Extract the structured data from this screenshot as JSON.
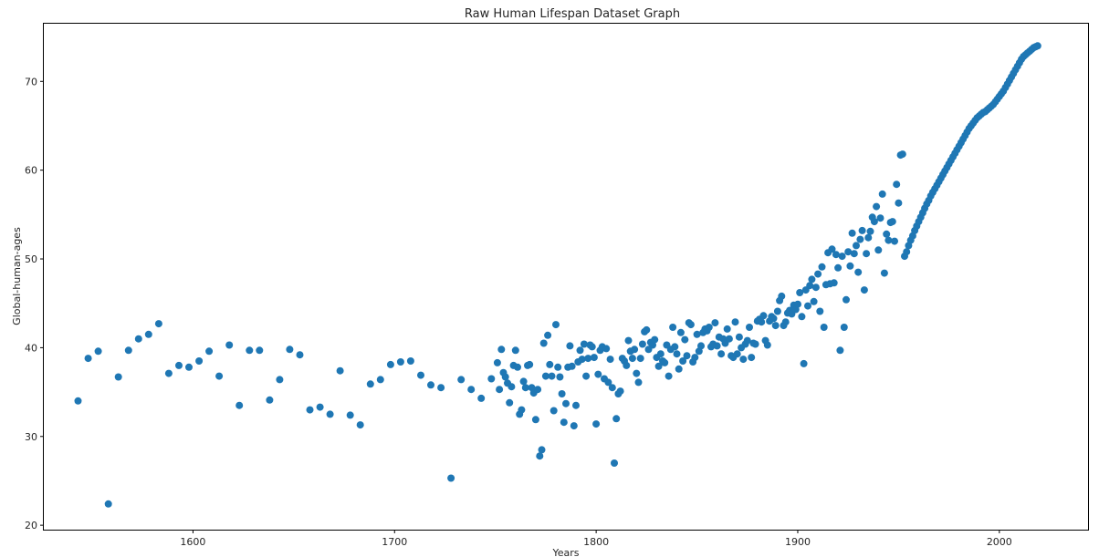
{
  "chart_data": {
    "type": "scatter",
    "title": "Raw Human Lifespan Dataset Graph",
    "xlabel": "Years",
    "ylabel": "Global-human-ages",
    "xlim": [
      1526,
      2044
    ],
    "ylim": [
      19.5,
      76.5
    ],
    "xticks": [
      1600,
      1700,
      1800,
      1900,
      2000
    ],
    "yticks": [
      20,
      30,
      40,
      50,
      60,
      70
    ],
    "grid": false,
    "legend": "none",
    "marker_color": "#1f77b4",
    "series": [
      {
        "points": [
          [
            1543,
            34.0
          ],
          [
            1548,
            38.8
          ],
          [
            1553,
            39.6
          ],
          [
            1558,
            22.4
          ],
          [
            1563,
            36.7
          ],
          [
            1568,
            39.7
          ],
          [
            1573,
            41.0
          ],
          [
            1578,
            41.5
          ],
          [
            1583,
            42.7
          ],
          [
            1588,
            37.1
          ],
          [
            1593,
            38.0
          ],
          [
            1598,
            37.8
          ],
          [
            1603,
            38.5
          ],
          [
            1608,
            39.6
          ],
          [
            1613,
            36.8
          ],
          [
            1618,
            40.3
          ],
          [
            1623,
            33.5
          ],
          [
            1628,
            39.7
          ],
          [
            1633,
            39.7
          ],
          [
            1638,
            34.1
          ],
          [
            1643,
            36.4
          ],
          [
            1648,
            39.8
          ],
          [
            1653,
            39.2
          ],
          [
            1658,
            33.0
          ],
          [
            1663,
            33.3
          ],
          [
            1668,
            32.5
          ],
          [
            1673,
            37.4
          ],
          [
            1678,
            32.4
          ],
          [
            1683,
            31.3
          ],
          [
            1688,
            35.9
          ],
          [
            1693,
            36.4
          ],
          [
            1698,
            38.1
          ],
          [
            1703,
            38.4
          ],
          [
            1708,
            38.5
          ],
          [
            1713,
            36.9
          ],
          [
            1718,
            35.8
          ],
          [
            1723,
            35.5
          ],
          [
            1728,
            25.3
          ],
          [
            1733,
            36.4
          ],
          [
            1738,
            35.3
          ],
          [
            1743,
            34.3
          ],
          [
            1748,
            36.5
          ],
          [
            1751,
            38.3
          ],
          [
            1752,
            35.3
          ],
          [
            1753,
            39.8
          ],
          [
            1754,
            37.2
          ],
          [
            1755,
            36.7
          ],
          [
            1756,
            36.0
          ],
          [
            1757,
            33.8
          ],
          [
            1758,
            35.6
          ],
          [
            1759,
            38.0
          ],
          [
            1760,
            39.7
          ],
          [
            1761,
            37.8
          ],
          [
            1762,
            32.5
          ],
          [
            1763,
            33.0
          ],
          [
            1764,
            36.2
          ],
          [
            1765,
            35.5
          ],
          [
            1766,
            38.0
          ],
          [
            1767,
            38.1
          ],
          [
            1768,
            35.5
          ],
          [
            1769,
            34.9
          ],
          [
            1770,
            31.9
          ],
          [
            1771,
            35.3
          ],
          [
            1772,
            27.8
          ],
          [
            1773,
            28.5
          ],
          [
            1774,
            40.5
          ],
          [
            1775,
            36.8
          ],
          [
            1776,
            41.4
          ],
          [
            1777,
            38.1
          ],
          [
            1778,
            36.8
          ],
          [
            1779,
            32.9
          ],
          [
            1780,
            42.6
          ],
          [
            1781,
            37.8
          ],
          [
            1782,
            36.7
          ],
          [
            1783,
            34.8
          ],
          [
            1784,
            31.6
          ],
          [
            1785,
            33.7
          ],
          [
            1786,
            37.8
          ],
          [
            1787,
            40.2
          ],
          [
            1788,
            37.9
          ],
          [
            1789,
            31.2
          ],
          [
            1790,
            33.5
          ],
          [
            1791,
            38.4
          ],
          [
            1792,
            39.7
          ],
          [
            1793,
            38.7
          ],
          [
            1794,
            40.4
          ],
          [
            1795,
            36.8
          ],
          [
            1796,
            38.8
          ],
          [
            1797,
            40.3
          ],
          [
            1798,
            40.1
          ],
          [
            1799,
            38.9
          ],
          [
            1800,
            31.4
          ],
          [
            1801,
            37.0
          ],
          [
            1802,
            39.7
          ],
          [
            1803,
            40.1
          ],
          [
            1804,
            36.5
          ],
          [
            1805,
            39.9
          ],
          [
            1806,
            36.1
          ],
          [
            1807,
            38.7
          ],
          [
            1808,
            35.5
          ],
          [
            1809,
            27.0
          ],
          [
            1810,
            32.0
          ],
          [
            1811,
            34.8
          ],
          [
            1812,
            35.1
          ],
          [
            1813,
            38.8
          ],
          [
            1814,
            38.5
          ],
          [
            1815,
            38.0
          ],
          [
            1816,
            40.8
          ],
          [
            1817,
            39.6
          ],
          [
            1818,
            38.8
          ],
          [
            1819,
            39.8
          ],
          [
            1820,
            37.1
          ],
          [
            1821,
            36.1
          ],
          [
            1822,
            38.8
          ],
          [
            1823,
            40.4
          ],
          [
            1824,
            41.8
          ],
          [
            1825,
            42.0
          ],
          [
            1826,
            39.8
          ],
          [
            1827,
            40.6
          ],
          [
            1828,
            40.3
          ],
          [
            1829,
            40.9
          ],
          [
            1830,
            38.9
          ],
          [
            1831,
            37.9
          ],
          [
            1832,
            39.3
          ],
          [
            1833,
            38.5
          ],
          [
            1834,
            38.3
          ],
          [
            1835,
            40.3
          ],
          [
            1836,
            36.8
          ],
          [
            1837,
            39.8
          ],
          [
            1838,
            42.3
          ],
          [
            1839,
            40.1
          ],
          [
            1840,
            39.3
          ],
          [
            1841,
            37.6
          ],
          [
            1842,
            41.7
          ],
          [
            1843,
            38.5
          ],
          [
            1844,
            40.9
          ],
          [
            1845,
            39.1
          ],
          [
            1846,
            42.8
          ],
          [
            1847,
            42.6
          ],
          [
            1848,
            38.4
          ],
          [
            1849,
            38.9
          ],
          [
            1850,
            41.5
          ],
          [
            1851,
            39.6
          ],
          [
            1852,
            40.2
          ],
          [
            1853,
            41.7
          ],
          [
            1854,
            42.1
          ],
          [
            1855,
            41.9
          ],
          [
            1856,
            42.3
          ],
          [
            1857,
            40.1
          ],
          [
            1858,
            40.4
          ],
          [
            1859,
            42.8
          ],
          [
            1860,
            40.2
          ],
          [
            1861,
            41.2
          ],
          [
            1862,
            39.3
          ],
          [
            1863,
            41.0
          ],
          [
            1864,
            40.5
          ],
          [
            1865,
            42.1
          ],
          [
            1866,
            41.0
          ],
          [
            1867,
            39.1
          ],
          [
            1868,
            38.9
          ],
          [
            1869,
            42.9
          ],
          [
            1870,
            39.3
          ],
          [
            1871,
            41.2
          ],
          [
            1872,
            40.0
          ],
          [
            1873,
            38.7
          ],
          [
            1874,
            40.4
          ],
          [
            1875,
            40.8
          ],
          [
            1876,
            42.3
          ],
          [
            1877,
            38.9
          ],
          [
            1878,
            40.5
          ],
          [
            1879,
            40.4
          ],
          [
            1880,
            43.0
          ],
          [
            1881,
            43.2
          ],
          [
            1882,
            42.9
          ],
          [
            1883,
            43.6
          ],
          [
            1884,
            40.8
          ],
          [
            1885,
            40.3
          ],
          [
            1886,
            43.0
          ],
          [
            1887,
            43.5
          ],
          [
            1888,
            43.3
          ],
          [
            1889,
            42.5
          ],
          [
            1890,
            44.1
          ],
          [
            1891,
            45.3
          ],
          [
            1892,
            45.8
          ],
          [
            1893,
            42.5
          ],
          [
            1894,
            42.9
          ],
          [
            1895,
            43.9
          ],
          [
            1896,
            44.2
          ],
          [
            1897,
            43.8
          ],
          [
            1898,
            44.8
          ],
          [
            1899,
            44.3
          ],
          [
            1900,
            44.9
          ],
          [
            1901,
            46.2
          ],
          [
            1902,
            43.5
          ],
          [
            1903,
            38.2
          ],
          [
            1904,
            46.5
          ],
          [
            1905,
            44.7
          ],
          [
            1906,
            47.0
          ],
          [
            1907,
            47.7
          ],
          [
            1908,
            45.2
          ],
          [
            1909,
            46.8
          ],
          [
            1910,
            48.3
          ],
          [
            1911,
            44.1
          ],
          [
            1912,
            49.1
          ],
          [
            1913,
            42.3
          ],
          [
            1914,
            47.1
          ],
          [
            1915,
            50.7
          ],
          [
            1916,
            47.2
          ],
          [
            1917,
            51.1
          ],
          [
            1918,
            47.3
          ],
          [
            1919,
            50.5
          ],
          [
            1920,
            49.0
          ],
          [
            1921,
            39.7
          ],
          [
            1922,
            50.3
          ],
          [
            1923,
            42.3
          ],
          [
            1924,
            45.4
          ],
          [
            1925,
            50.8
          ],
          [
            1926,
            49.2
          ],
          [
            1927,
            52.9
          ],
          [
            1928,
            50.6
          ],
          [
            1929,
            51.5
          ],
          [
            1930,
            48.5
          ],
          [
            1931,
            52.2
          ],
          [
            1932,
            53.2
          ],
          [
            1933,
            46.5
          ],
          [
            1934,
            50.6
          ],
          [
            1935,
            52.4
          ],
          [
            1936,
            53.1
          ],
          [
            1937,
            54.7
          ],
          [
            1938,
            54.2
          ],
          [
            1939,
            55.9
          ],
          [
            1940,
            51.0
          ],
          [
            1941,
            54.6
          ],
          [
            1942,
            57.3
          ],
          [
            1943,
            48.4
          ],
          [
            1944,
            52.8
          ],
          [
            1945,
            52.1
          ],
          [
            1946,
            54.1
          ],
          [
            1947,
            54.2
          ],
          [
            1948,
            52.0
          ],
          [
            1949,
            58.4
          ],
          [
            1950,
            56.3
          ],
          [
            1951,
            61.7
          ],
          [
            1952,
            61.8
          ],
          [
            1953,
            50.3
          ],
          [
            1954,
            50.8
          ],
          [
            1955,
            51.5
          ],
          [
            1956,
            52.1
          ],
          [
            1957,
            52.6
          ],
          [
            1958,
            53.2
          ],
          [
            1959,
            53.7
          ],
          [
            1960,
            54.2
          ],
          [
            1961,
            54.7
          ],
          [
            1962,
            55.2
          ],
          [
            1963,
            55.7
          ],
          [
            1964,
            56.2
          ],
          [
            1965,
            56.6
          ],
          [
            1966,
            57.1
          ],
          [
            1967,
            57.5
          ],
          [
            1968,
            57.9
          ],
          [
            1969,
            58.3
          ],
          [
            1970,
            58.7
          ],
          [
            1971,
            59.1
          ],
          [
            1972,
            59.5
          ],
          [
            1973,
            59.9
          ],
          [
            1974,
            60.3
          ],
          [
            1975,
            60.7
          ],
          [
            1976,
            61.1
          ],
          [
            1977,
            61.5
          ],
          [
            1978,
            61.9
          ],
          [
            1979,
            62.3
          ],
          [
            1980,
            62.7
          ],
          [
            1981,
            63.1
          ],
          [
            1982,
            63.5
          ],
          [
            1983,
            63.9
          ],
          [
            1984,
            64.3
          ],
          [
            1985,
            64.7
          ],
          [
            1986,
            65.0
          ],
          [
            1987,
            65.3
          ],
          [
            1988,
            65.6
          ],
          [
            1989,
            65.9
          ],
          [
            1990,
            66.1
          ],
          [
            1991,
            66.3
          ],
          [
            1992,
            66.5
          ],
          [
            1993,
            66.6
          ],
          [
            1994,
            66.8
          ],
          [
            1995,
            67.0
          ],
          [
            1996,
            67.2
          ],
          [
            1997,
            67.4
          ],
          [
            1998,
            67.7
          ],
          [
            1999,
            68.0
          ],
          [
            2000,
            68.3
          ],
          [
            2001,
            68.6
          ],
          [
            2002,
            68.9
          ],
          [
            2003,
            69.3
          ],
          [
            2004,
            69.7
          ],
          [
            2005,
            70.1
          ],
          [
            2006,
            70.5
          ],
          [
            2007,
            70.9
          ],
          [
            2008,
            71.3
          ],
          [
            2009,
            71.7
          ],
          [
            2010,
            72.1
          ],
          [
            2011,
            72.5
          ],
          [
            2012,
            72.8
          ],
          [
            2013,
            73.0
          ],
          [
            2014,
            73.2
          ],
          [
            2015,
            73.4
          ],
          [
            2016,
            73.6
          ],
          [
            2017,
            73.8
          ],
          [
            2018,
            73.9
          ],
          [
            2019,
            74.0
          ]
        ]
      }
    ]
  }
}
